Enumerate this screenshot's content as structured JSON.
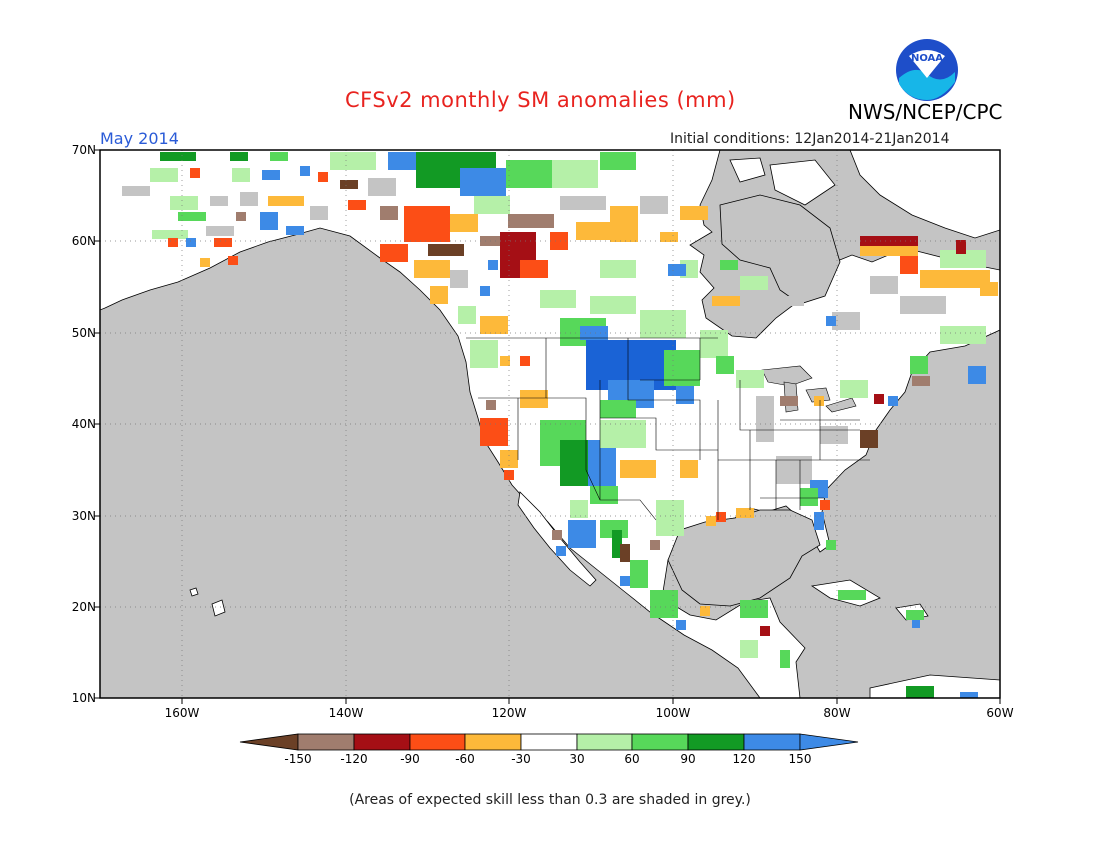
{
  "header": {
    "title": "CFSv2 monthly SM anomalies (mm)",
    "agency": "NWS/NCEP/CPC",
    "valid_month": "May 2014",
    "initial_conditions": "Initial conditions: 12Jan2014-21Jan2014",
    "logo_text": "NOAA"
  },
  "axes": {
    "lat_labels": [
      "70N",
      "60N",
      "50N",
      "40N",
      "30N",
      "20N",
      "10N"
    ],
    "lon_labels": [
      "160W",
      "140W",
      "120W",
      "100W",
      "80W",
      "60W"
    ]
  },
  "colorbar": {
    "tick_labels": [
      "-150",
      "-120",
      "-90",
      "-60",
      "-30",
      "30",
      "60",
      "90",
      "120",
      "150"
    ],
    "colors": [
      "#6b4026",
      "#a07d6e",
      "#a50f15",
      "#fc4e16",
      "#fdb93a",
      "#ffffff",
      "#b5f0a8",
      "#57d85a",
      "#129a24",
      "#3d8ae6"
    ],
    "min_arrow_color": "#6b4026",
    "max_arrow_color": "#3d8ae6"
  },
  "colors": {
    "ocean": "#c4c4c4",
    "land": "#ffffff",
    "low_skill_grey": "#c4c4c4",
    "title": "#e8231f",
    "month": "#2a5bd7"
  },
  "footnote": "(Areas of expected skill less than 0.3 are shaded in grey.)"
}
